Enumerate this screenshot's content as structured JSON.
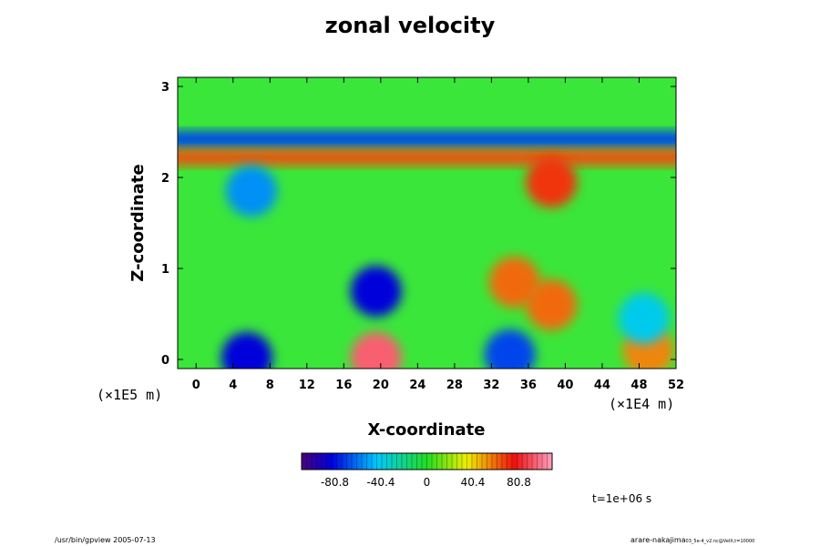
{
  "chart_data": {
    "type": "heatmap",
    "title": "zonal velocity",
    "xlabel": "X-coordinate",
    "ylabel": "Z-coordinate",
    "x_unit": "(×1E4 m)",
    "y_unit": "(×1E5 m)",
    "xlim": [
      -2,
      52
    ],
    "ylim": [
      -0.1,
      3.1
    ],
    "x_ticks": [
      "0",
      "4",
      "8",
      "12",
      "16",
      "20",
      "24",
      "28",
      "32",
      "36",
      "40",
      "44",
      "48",
      "52"
    ],
    "y_ticks": [
      "0",
      "1",
      "2",
      "3"
    ],
    "colorbar": {
      "range": [
        -110,
        110
      ],
      "ticks": [
        "-80.8",
        "-40.4",
        "0",
        "40.4",
        "80.8"
      ],
      "colormap": "rainbow (purple-blue-cyan-green-yellow-red-pink)"
    },
    "features": [
      {
        "kind": "band",
        "z": 2.42,
        "value": -70
      },
      {
        "kind": "band",
        "z": 2.22,
        "value": 65
      },
      {
        "kind": "blob",
        "x": 5.5,
        "z": 0.02,
        "value": -85
      },
      {
        "kind": "blob",
        "x": 19.5,
        "z": 0.02,
        "value": 95
      },
      {
        "kind": "blob",
        "x": 34,
        "z": 0.05,
        "value": -70
      },
      {
        "kind": "blob",
        "x": 19.5,
        "z": 0.75,
        "value": -85
      },
      {
        "kind": "blob",
        "x": 34.5,
        "z": 0.85,
        "value": 60
      },
      {
        "kind": "blob",
        "x": 6,
        "z": 1.85,
        "value": -55
      },
      {
        "kind": "blob",
        "x": 38.5,
        "z": 1.95,
        "value": 70
      },
      {
        "kind": "blob",
        "x": 49,
        "z": 0.1,
        "value": 55
      },
      {
        "kind": "blob",
        "x": 48.5,
        "z": 0.45,
        "value": -40
      },
      {
        "kind": "blob",
        "x": 38.5,
        "z": 0.6,
        "value": 60
      }
    ]
  },
  "footer": {
    "left": "/usr/bin/gpview 2005-07-13",
    "right_main": "arare-nakajima",
    "right_sub": "03_5e-4_v2.nc@VelX,t=10000"
  },
  "time_label": "t=1e+06 s",
  "colors": {
    "background": "#ffffff",
    "frame": "#000000"
  }
}
